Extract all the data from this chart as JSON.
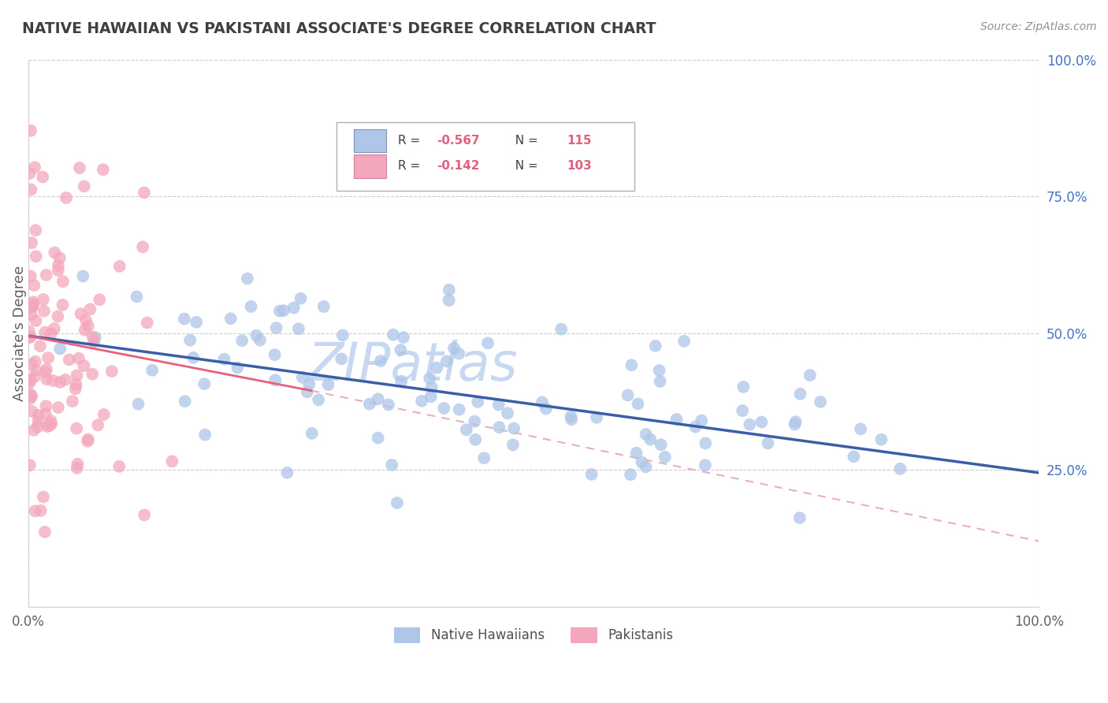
{
  "title": "NATIVE HAWAIIAN VS PAKISTANI ASSOCIATE'S DEGREE CORRELATION CHART",
  "source_text": "Source: ZipAtlas.com",
  "ylabel": "Associate's Degree",
  "xlim": [
    0.0,
    1.0
  ],
  "ylim": [
    0.0,
    1.0
  ],
  "xtick_positions": [
    0.0,
    1.0
  ],
  "xtick_labels": [
    "0.0%",
    "100.0%"
  ],
  "ytick_positions": [
    1.0,
    0.75,
    0.5,
    0.25
  ],
  "ytick_labels": [
    "100.0%",
    "75.0%",
    "50.0%",
    "25.0%"
  ],
  "legend_r1": "R = -0.567",
  "legend_n1": "N = 115",
  "legend_r2": "R = -0.142",
  "legend_n2": "N = 103",
  "color_blue": "#aec6e8",
  "color_pink": "#f4a7bc",
  "line_blue": "#3a5fa8",
  "line_pink": "#e8607a",
  "line_dashed_color": "#e8b0bc",
  "watermark": "ZIPatlas",
  "watermark_color": "#c8d8f0",
  "title_color": "#404040",
  "source_color": "#909090",
  "legend_text_color_r": "#e06080",
  "legend_text_color_n": "#404040",
  "background_color": "#ffffff",
  "grid_color": "#cccccc",
  "ytick_color": "#4472c4",
  "xtick_color": "#606060",
  "ylabel_color": "#606060"
}
